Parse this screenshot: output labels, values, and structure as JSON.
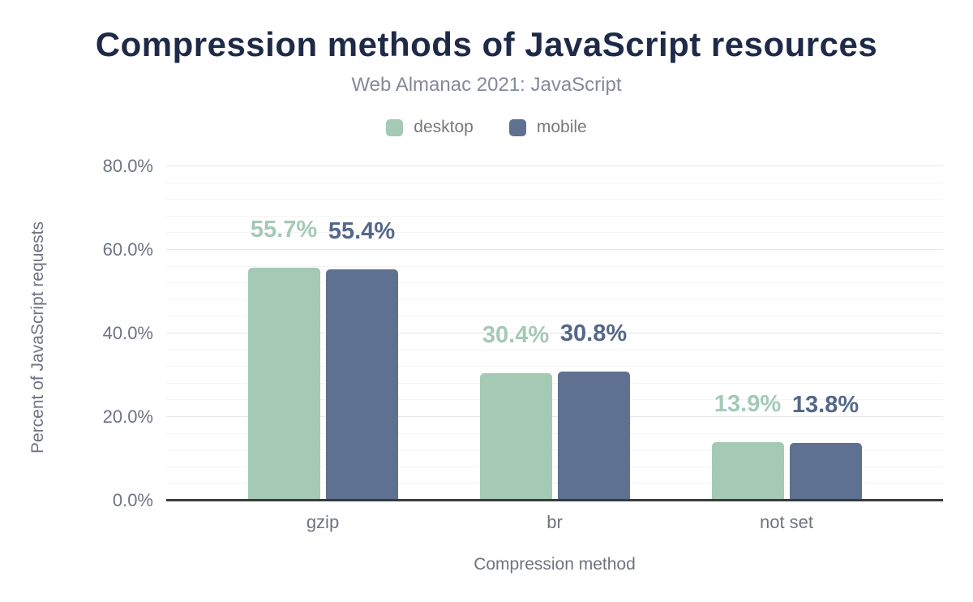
{
  "header": {
    "title": "Compression methods of JavaScript resources",
    "subtitle": "Web Almanac 2021: JavaScript"
  },
  "legend": {
    "items": [
      {
        "label": "desktop",
        "color": "#a4c9b5"
      },
      {
        "label": "mobile",
        "color": "#5e7190"
      }
    ]
  },
  "chart_data": {
    "type": "bar",
    "title": "Compression methods of JavaScript resources",
    "subtitle": "Web Almanac 2021: JavaScript",
    "categories": [
      "gzip",
      "br",
      "not set"
    ],
    "series": [
      {
        "name": "desktop",
        "color": "#a4c9b5",
        "label_color": "#a4c9b5",
        "values": [
          55.7,
          30.4,
          13.9
        ],
        "labels": [
          "55.7%",
          "30.4%",
          "13.9%"
        ]
      },
      {
        "name": "mobile",
        "color": "#5e7190",
        "label_color": "#54678a",
        "values": [
          55.4,
          30.8,
          13.8
        ],
        "labels": [
          "55.4%",
          "30.8%",
          "13.8%"
        ]
      }
    ],
    "xlabel": "Compression method",
    "ylabel": "Percent of JavaScript requests",
    "ylim": [
      0,
      80
    ],
    "yticks": [
      {
        "value": 0,
        "label": "0.0%"
      },
      {
        "value": 20,
        "label": "20.0%"
      },
      {
        "value": 40,
        "label": "40.0%"
      },
      {
        "value": 60,
        "label": "60.0%"
      },
      {
        "value": 80,
        "label": "80.0%"
      }
    ],
    "grid": {
      "minor_step": 4,
      "major_step": 20,
      "minor_color": "#f4f4f6",
      "major_color": "#e7e7ea",
      "legend_position": "top"
    }
  }
}
